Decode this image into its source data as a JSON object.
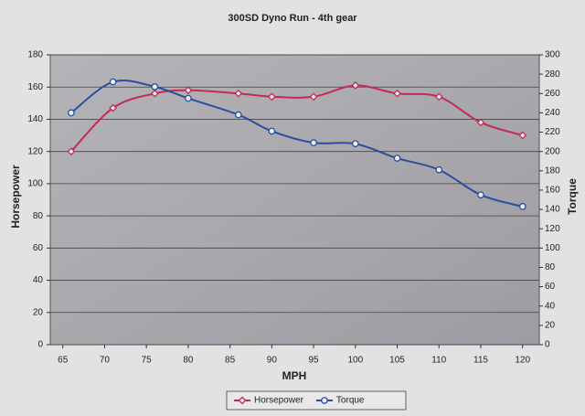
{
  "chart_data": {
    "type": "line",
    "title": "300SD Dyno Run - 4th gear",
    "x_label": "MPH",
    "y_label": "Horsepower",
    "y2_label": "Torque",
    "x": [
      66,
      71,
      76,
      80,
      86,
      90,
      95,
      100,
      105,
      110,
      115,
      120
    ],
    "xlim": [
      63.5,
      122
    ],
    "xticks": [
      65,
      70,
      75,
      80,
      85,
      90,
      95,
      100,
      105,
      110,
      115,
      120
    ],
    "ylim": [
      0,
      180
    ],
    "yticks": [
      0,
      20,
      40,
      60,
      80,
      100,
      120,
      140,
      160,
      180
    ],
    "y2lim": [
      0,
      300
    ],
    "y2ticks": [
      0,
      20,
      40,
      60,
      80,
      100,
      120,
      140,
      160,
      180,
      200,
      220,
      240,
      260,
      280,
      300
    ],
    "grid": true,
    "legend": "bottom",
    "series": [
      {
        "name": "Horsepower",
        "color": "#c42a55",
        "marker": "diamond",
        "values": [
          120,
          147,
          156,
          158,
          156,
          154,
          154,
          161,
          156,
          154,
          138,
          130
        ]
      },
      {
        "name": "Torque",
        "color": "#2a4f9e",
        "marker": "circle",
        "axis": "y2",
        "values": [
          240,
          272,
          267,
          255,
          238,
          221,
          209,
          208,
          193,
          181,
          155,
          143
        ]
      }
    ]
  }
}
